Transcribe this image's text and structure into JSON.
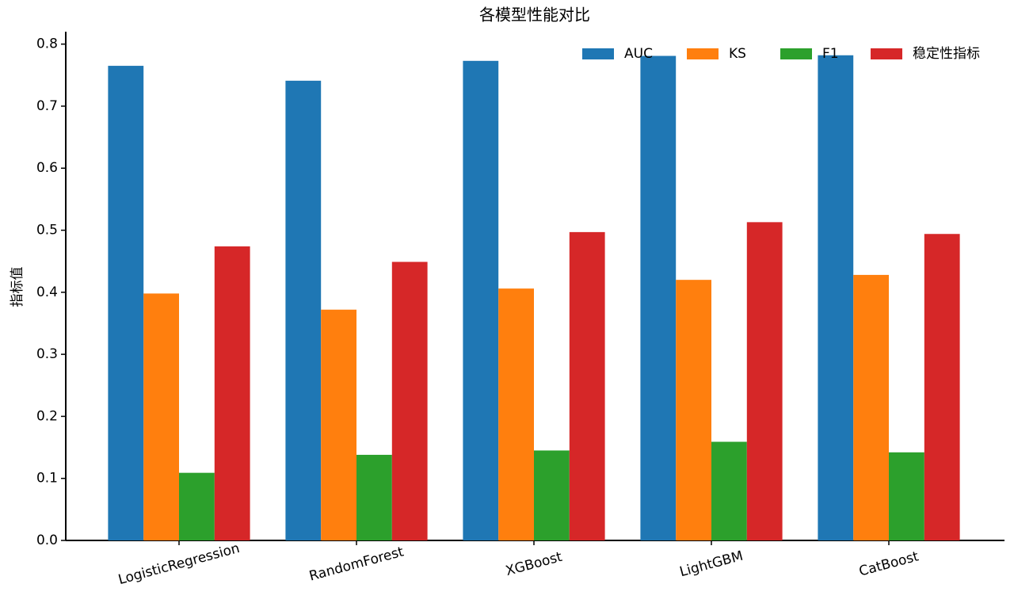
{
  "chart_data": {
    "type": "bar",
    "title": "各模型性能对比",
    "ylabel": "指标值",
    "categories": [
      "LogisticRegression",
      "RandomForest",
      "XGBoost",
      "LightGBM",
      "CatBoost"
    ],
    "series": [
      {
        "name": "AUC",
        "color": "#1f77b4",
        "values": [
          0.765,
          0.741,
          0.773,
          0.781,
          0.782
        ]
      },
      {
        "name": "KS",
        "color": "#ff7f0e",
        "values": [
          0.398,
          0.372,
          0.406,
          0.42,
          0.428
        ]
      },
      {
        "name": "F1",
        "color": "#2ca02c",
        "values": [
          0.109,
          0.138,
          0.145,
          0.159,
          0.142
        ]
      },
      {
        "name": "稳定性指标",
        "color": "#d62728",
        "values": [
          0.474,
          0.449,
          0.497,
          0.513,
          0.494
        ]
      }
    ],
    "ylim": [
      0,
      0.82
    ],
    "yticks": [
      {
        "value": 0,
        "label": "0.0"
      },
      0.1,
      0.2,
      0.3,
      0.4,
      0.5,
      0.6,
      0.7,
      0.8
    ],
    "grid": false,
    "legend": "upper right"
  }
}
